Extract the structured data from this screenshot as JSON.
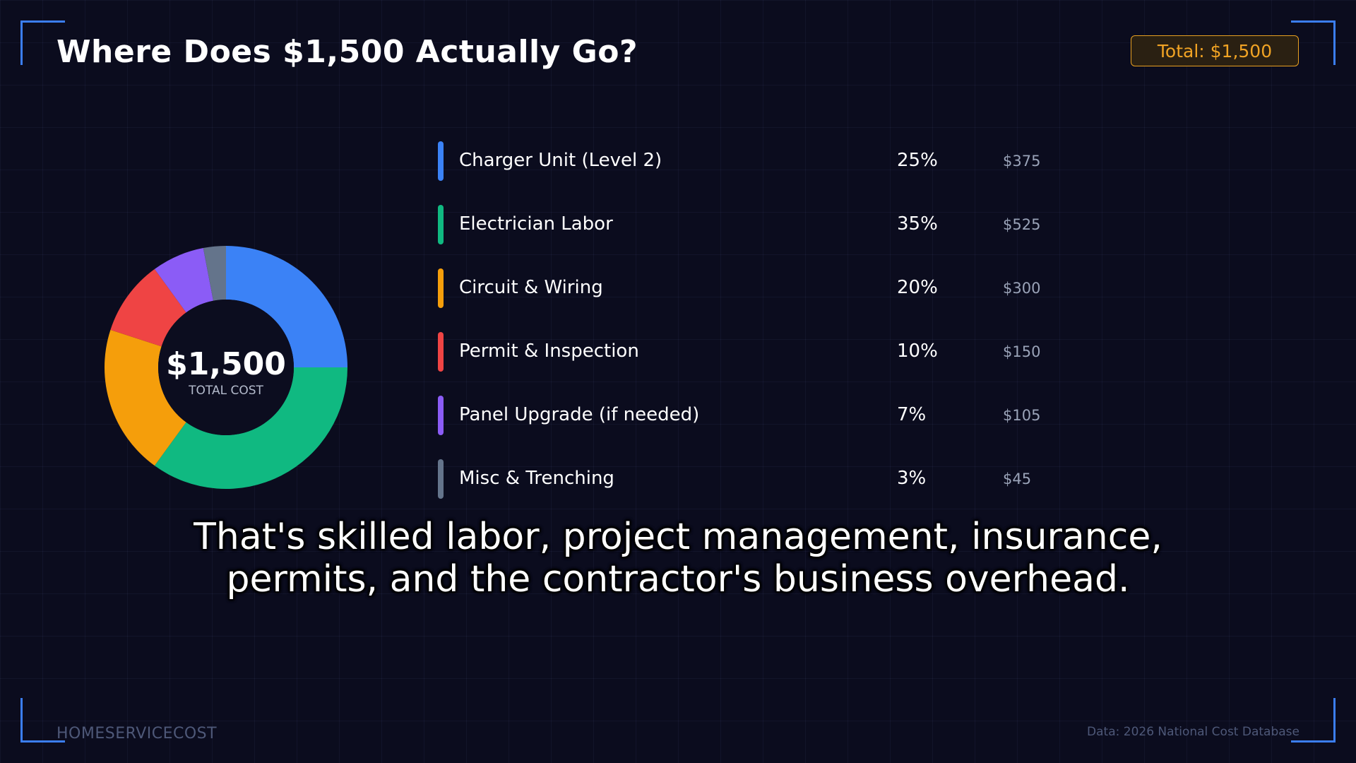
{
  "header": {
    "title": "Where Does $1,500 Actually Go?",
    "total_badge": "Total: $1,500"
  },
  "donut_center": {
    "value": "$1,500",
    "label": "TOTAL COST"
  },
  "chart_data": {
    "type": "pie",
    "categories": [
      "Charger Unit (Level 2)",
      "Electrician Labor",
      "Circuit & Wiring",
      "Permit & Inspection",
      "Panel Upgrade (if needed)",
      "Misc & Trenching"
    ],
    "values": [
      25,
      35,
      20,
      10,
      7,
      3
    ],
    "percent_labels": [
      "25%",
      "35%",
      "20%",
      "10%",
      "7%",
      "3%"
    ],
    "amount_labels": [
      "$375",
      "$525",
      "$300",
      "$150",
      "$105",
      "$45"
    ],
    "colors": [
      "#3b82f6",
      "#10b981",
      "#f59e0b",
      "#ef4444",
      "#8b5cf6",
      "#64748b"
    ],
    "title": "Where Does $1,500 Actually Go?",
    "legend": "right"
  },
  "caption": {
    "line1": "That's skilled labor, project management, insurance,",
    "line2": "permits, and the contractor's business overhead."
  },
  "footer": {
    "brand": "HOMESERVICECOST",
    "source": "Data: 2026 National Cost Database"
  }
}
